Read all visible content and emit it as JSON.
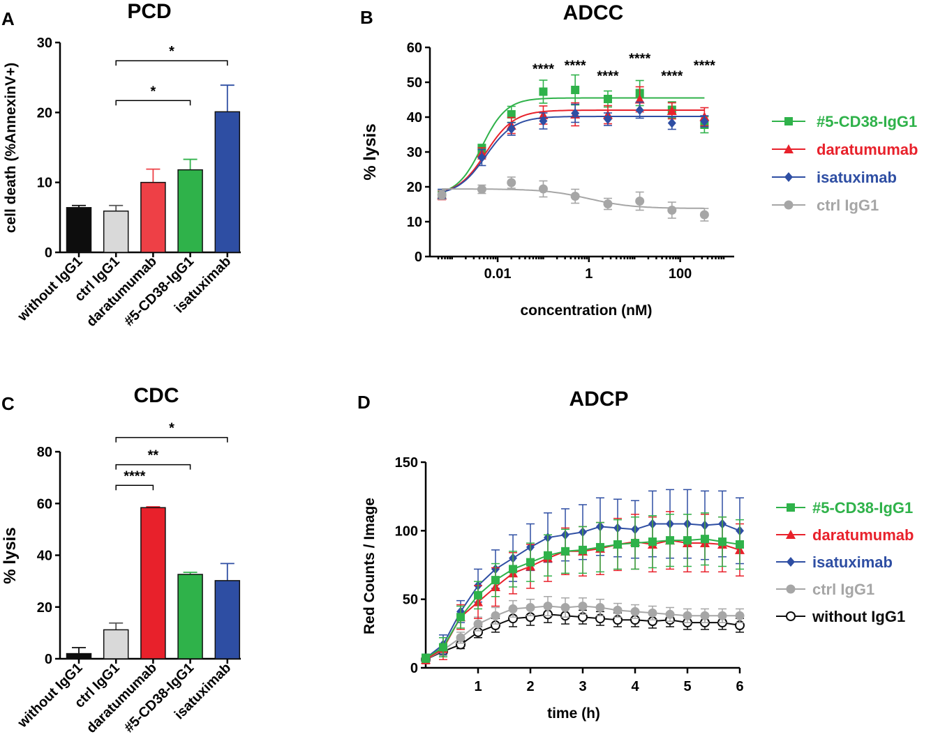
{
  "panel_letters": {
    "a": "A",
    "b": "B",
    "c": "C",
    "d": "D"
  },
  "colors": {
    "black": "#0d0d0d",
    "gray": "#a6a6a6",
    "light_gray": "#d9d9d9",
    "red": "#e8212b",
    "green": "#2fb24a",
    "blue": "#2e4ea3"
  },
  "chart_data": [
    {
      "id": "A",
      "type": "bar",
      "title": "PCD",
      "ylabel": "cell death (%AnnexinV+)",
      "xlabel": "",
      "ylim": [
        0,
        30
      ],
      "yticks": [
        0,
        10,
        20,
        30
      ],
      "categories": [
        "without IgG1",
        "ctrl IgG1",
        "daratumumab",
        "#5-CD38-IgG1",
        "isatuximab"
      ],
      "values": [
        6.4,
        5.9,
        10.0,
        11.8,
        20.1
      ],
      "errors": [
        0.3,
        0.8,
        1.9,
        1.5,
        3.8
      ],
      "bar_colors": [
        "#0d0d0d",
        "#d9d9d9",
        "#ee4046",
        "#2fb24a",
        "#2e4ea3"
      ],
      "significance": [
        {
          "from": 1,
          "to": 3,
          "label": "*",
          "y": 21.7
        },
        {
          "from": 1,
          "to": 4,
          "label": "*",
          "y": 27.4
        }
      ]
    },
    {
      "id": "B",
      "type": "line",
      "title": "ADCC",
      "ylabel": "% lysis",
      "xlabel": "concentration (nM)",
      "xscale": "log",
      "xlim": [
        0.0005,
        1000
      ],
      "xticks": [
        0.01,
        1,
        100
      ],
      "xtick_labels": [
        "0.01",
        "1",
        "100"
      ],
      "ylim": [
        0,
        60
      ],
      "yticks": [
        0,
        10,
        20,
        30,
        40,
        50,
        60
      ],
      "x": [
        0.0006,
        0.0045,
        0.02,
        0.1,
        0.5,
        2.6,
        13,
        66,
        340
      ],
      "series": [
        {
          "name": "#5-CD38-IgG1",
          "color": "#2fb24a",
          "marker": "square",
          "values": [
            17.8,
            30.9,
            40.8,
            47.3,
            47.8,
            45.2,
            46.9,
            42.1,
            37.8
          ],
          "errors": [
            1.3,
            1.3,
            2.3,
            3.3,
            4.3,
            2.3,
            3.6,
            2.3,
            2.3
          ],
          "fit": {
            "bottom": 17.5,
            "top": 45.5,
            "ec50": 0.0045,
            "hill": 1.6
          }
        },
        {
          "name": "daratumumab",
          "color": "#e8212b",
          "marker": "triangle",
          "values": [
            17.6,
            29.6,
            37.6,
            40.6,
            40.8,
            40.7,
            45.1,
            41.8,
            40.1
          ],
          "errors": [
            1.3,
            1.6,
            2.3,
            2.6,
            3.3,
            2.6,
            3.6,
            2.3,
            2.6
          ],
          "fit": {
            "bottom": 17.5,
            "top": 42.0,
            "ec50": 0.0055,
            "hill": 1.4
          }
        },
        {
          "name": "isatuximab",
          "color": "#2e4ea3",
          "marker": "diamond",
          "values": [
            18.0,
            28.4,
            36.6,
            38.9,
            41.1,
            39.4,
            42.0,
            38.3,
            38.8
          ],
          "errors": [
            1.3,
            2.3,
            1.8,
            2.3,
            2.6,
            1.8,
            2.3,
            1.8,
            1.6
          ],
          "fit": {
            "bottom": 17.5,
            "top": 40.2,
            "ec50": 0.0055,
            "hill": 1.4
          }
        },
        {
          "name": "ctrl IgG1",
          "color": "#a6a6a6",
          "marker": "circle",
          "values": [
            17.7,
            19.3,
            21.2,
            19.4,
            17.3,
            15.1,
            15.9,
            13.3,
            12.0
          ],
          "errors": [
            1.3,
            1.2,
            1.6,
            2.3,
            2.0,
            1.6,
            2.6,
            2.3,
            1.8
          ],
          "fit": {
            "bottom": 13.8,
            "top": 19.4,
            "ec50": 1.0,
            "hill": -0.9
          }
        }
      ],
      "significance": [
        {
          "x": 0.1,
          "label": "****",
          "y": 52.5
        },
        {
          "x": 0.5,
          "label": "****",
          "y": 53.5
        },
        {
          "x": 2.6,
          "label": "****",
          "y": 50.5
        },
        {
          "x": 13,
          "label": "****",
          "y": 55.5
        },
        {
          "x": 66,
          "label": "****",
          "y": 50.5
        },
        {
          "x": 340,
          "label": "****",
          "y": 53.5
        }
      ],
      "legend": "right"
    },
    {
      "id": "C",
      "type": "bar",
      "title": "CDC",
      "ylabel": "% lysis",
      "xlabel": "",
      "ylim": [
        0,
        80
      ],
      "yticks": [
        0,
        20,
        40,
        60,
        80
      ],
      "categories": [
        "without IgG1",
        "ctrl IgG1",
        "daratumumab",
        "#5-CD38-IgG1",
        "isatuximab"
      ],
      "values": [
        2.0,
        11.2,
        58.4,
        32.6,
        30.2
      ],
      "errors": [
        2.3,
        2.6,
        0.3,
        0.8,
        6.6
      ],
      "bar_colors": [
        "#0d0d0d",
        "#d9d9d9",
        "#e8212b",
        "#2fb24a",
        "#2e4ea3"
      ],
      "significance": [
        {
          "from": 1,
          "to": 2,
          "label": "****",
          "y": 67.0
        },
        {
          "from": 1,
          "to": 3,
          "label": "**",
          "y": 75.0
        },
        {
          "from": 1,
          "to": 4,
          "label": "*",
          "y": 85.5
        }
      ]
    },
    {
      "id": "D",
      "type": "line",
      "title": "ADCP",
      "ylabel": "Red Counts / Image",
      "xlabel": "time (h)",
      "xlim": [
        0,
        6
      ],
      "xticks": [
        1,
        2,
        3,
        4,
        5,
        6
      ],
      "ylim": [
        0,
        150
      ],
      "yticks": [
        0,
        50,
        100,
        150
      ],
      "x": [
        0,
        0.333,
        0.667,
        1,
        1.333,
        1.667,
        2,
        2.333,
        2.667,
        3,
        3.333,
        3.667,
        4,
        4.333,
        4.667,
        5,
        5.333,
        5.667,
        6
      ],
      "series": [
        {
          "name": "#5-CD38-IgG1",
          "color": "#2fb24a",
          "marker": "square",
          "values": [
            7,
            15,
            37,
            53,
            64,
            72,
            77,
            82,
            85,
            86,
            88,
            90,
            91,
            92,
            93,
            93,
            94,
            92,
            90
          ],
          "errors": [
            3,
            7,
            8,
            10,
            12,
            13,
            14,
            15,
            16,
            17,
            18,
            18,
            19,
            19,
            19,
            19,
            19,
            18,
            18
          ]
        },
        {
          "name": "daratumumab",
          "color": "#e8212b",
          "marker": "triangle",
          "values": [
            6,
            14,
            37,
            48,
            59,
            69,
            74,
            80,
            85,
            85,
            87,
            90,
            92,
            90,
            93,
            91,
            91,
            90,
            86
          ],
          "errors": [
            3,
            8,
            9,
            12,
            14,
            15,
            16,
            17,
            17,
            18,
            19,
            19,
            20,
            20,
            21,
            21,
            21,
            20,
            19
          ]
        },
        {
          "name": "isatuximab",
          "color": "#2e4ea3",
          "marker": "diamond",
          "values": [
            7,
            17,
            41,
            60,
            72,
            80,
            88,
            95,
            97,
            99,
            103,
            102,
            101,
            105,
            105,
            105,
            104,
            105,
            100
          ],
          "errors": [
            3,
            7,
            8,
            12,
            14,
            17,
            17,
            18,
            19,
            20,
            21,
            21,
            21,
            24,
            25,
            25,
            25,
            24,
            24
          ]
        },
        {
          "name": "ctrl IgG1",
          "color": "#a6a6a6",
          "marker": "circle",
          "values": [
            6,
            13,
            22,
            32,
            38,
            43,
            44,
            45,
            44,
            45,
            44,
            42,
            41,
            40,
            39,
            38,
            38,
            38,
            38
          ],
          "errors": [
            3,
            4,
            4,
            5,
            6,
            6,
            6,
            7,
            7,
            6,
            6,
            5,
            5,
            5,
            5,
            5,
            5,
            5,
            5
          ]
        },
        {
          "name": "without IgG1",
          "color": "#0d0d0d",
          "marker": "open-circle",
          "values": [
            6,
            12,
            17,
            26,
            31,
            36,
            37,
            39,
            38,
            37,
            36,
            35,
            35,
            34,
            35,
            33,
            33,
            33,
            31
          ],
          "errors": [
            2,
            3,
            3,
            4,
            5,
            6,
            6,
            6,
            6,
            5,
            5,
            5,
            5,
            5,
            5,
            5,
            5,
            5,
            5
          ]
        }
      ],
      "legend": "right"
    }
  ]
}
